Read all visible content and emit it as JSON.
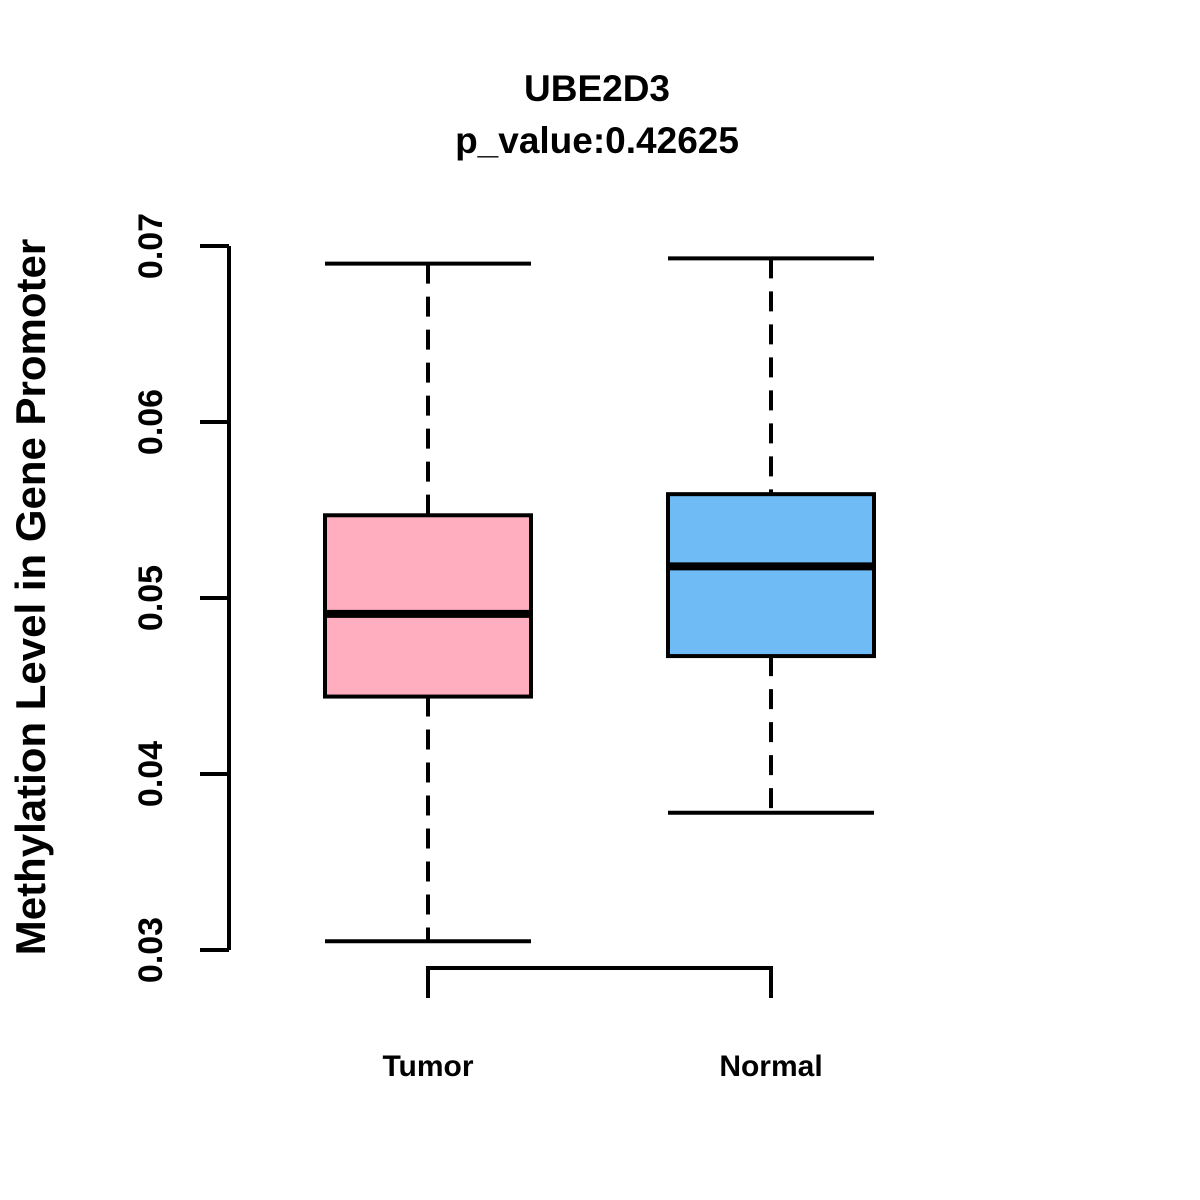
{
  "chart_data": {
    "type": "boxplot",
    "title": "UBE2D3",
    "subtitle": "p_value:0.42625",
    "ylabel": "Methylation Level in Gene Promoter",
    "xlabel": "",
    "categories": [
      "Tumor",
      "Normal"
    ],
    "y_tick_labels": [
      "0.03",
      "0.04",
      "0.05",
      "0.06",
      "0.07"
    ],
    "y_ticks": [
      0.03,
      0.04,
      0.05,
      0.06,
      0.07
    ],
    "ylim": [
      0.03,
      0.07
    ],
    "grid": false,
    "legend": "none",
    "series": [
      {
        "name": "Tumor",
        "lower_whisker": 0.0305,
        "q1": 0.0444,
        "median": 0.0491,
        "q3": 0.0547,
        "upper_whisker": 0.069,
        "outliers": [],
        "fill": "#FFAEC0"
      },
      {
        "name": "Normal",
        "lower_whisker": 0.0378,
        "q1": 0.0467,
        "median": 0.0518,
        "q3": 0.0559,
        "upper_whisker": 0.0693,
        "outliers": [],
        "fill": "#6EBBF5"
      }
    ],
    "colors": {
      "stroke": "#000000",
      "background": "#FFFFFF",
      "tumor_fill": "#FFAEC0",
      "normal_fill": "#6EBBF5"
    }
  }
}
